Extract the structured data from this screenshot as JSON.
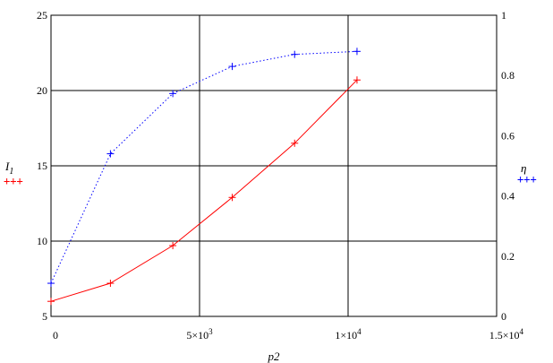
{
  "chart_data": {
    "type": "line",
    "xlabel": "p2",
    "ylabel_left": "I",
    "ylabel_left_subscript": "1",
    "ylabel_right": "η",
    "xlim": [
      0,
      15000
    ],
    "ylim_left": [
      5,
      25
    ],
    "ylim_right": [
      0,
      1
    ],
    "x_ticks": [
      0,
      5000,
      10000,
      15000
    ],
    "x_tick_labels": [
      {
        "base": "0",
        "exp": ""
      },
      {
        "base": "5×10",
        "exp": "3"
      },
      {
        "base": "1×10",
        "exp": "4"
      },
      {
        "base": "1.5×10",
        "exp": "4"
      }
    ],
    "y_left_ticks": [
      5,
      10,
      15,
      20,
      25
    ],
    "y_left_tick_labels": [
      "5",
      "10",
      "15",
      "20",
      "25"
    ],
    "y_right_ticks": [
      0,
      0.2,
      0.4,
      0.6,
      0.8,
      1
    ],
    "y_right_tick_labels": [
      "0",
      "0.2",
      "0.4",
      "0.6",
      "0.8",
      "1"
    ],
    "grid": true,
    "legend_marker_left": "+++",
    "legend_marker_right": "+++",
    "series": [
      {
        "axis": "left",
        "color": "#ff0000",
        "line_style": "solid",
        "marker": "+",
        "x": [
          0,
          2000,
          4100,
          6100,
          8200,
          10300
        ],
        "y": [
          6.0,
          7.2,
          9.7,
          12.9,
          16.5,
          20.7
        ]
      },
      {
        "axis": "right",
        "color": "#0000ff",
        "line_style": "dotted",
        "marker": "+",
        "x": [
          0,
          2000,
          4100,
          6100,
          8200,
          10300
        ],
        "y": [
          0.11,
          0.54,
          0.74,
          0.83,
          0.87,
          0.88
        ]
      }
    ]
  }
}
